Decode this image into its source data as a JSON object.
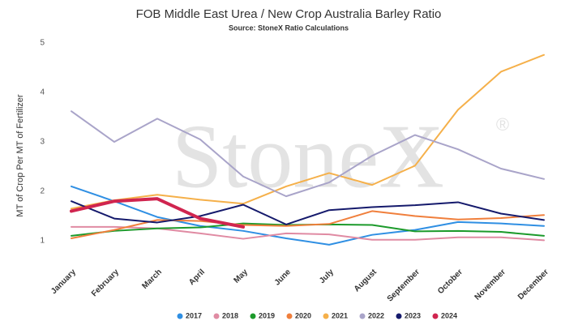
{
  "chart_data": {
    "type": "line",
    "title": "FOB Middle East Urea / New Crop Australia Barley Ratio",
    "subtitle": "Source: StoneX Ratio Calculations",
    "y_label": "MT of Crop Per MT of Fertilizer",
    "watermark": "StoneX",
    "watermark_symbol": "®",
    "categories": [
      "January",
      "February",
      "March",
      "April",
      "May",
      "June",
      "July",
      "August",
      "September",
      "October",
      "November",
      "December"
    ],
    "ylim": [
      0.6,
      5.1
    ],
    "yticks": [
      1,
      2,
      3,
      4,
      5
    ],
    "grid": false,
    "legend": "bottom",
    "series": [
      {
        "name": "2017",
        "color": "#2f8fe3",
        "values": [
          2.1,
          1.8,
          1.48,
          1.3,
          1.2,
          1.05,
          0.92,
          1.12,
          1.22,
          1.38,
          1.35,
          1.3
        ]
      },
      {
        "name": "2018",
        "color": "#e08ba3",
        "values": [
          1.28,
          1.28,
          1.25,
          1.15,
          1.04,
          1.15,
          1.13,
          1.02,
          1.02,
          1.07,
          1.07,
          1.01
        ]
      },
      {
        "name": "2019",
        "color": "#1c9a2b",
        "values": [
          1.1,
          1.2,
          1.25,
          1.27,
          1.35,
          1.32,
          1.33,
          1.32,
          1.19,
          1.2,
          1.18,
          1.1
        ]
      },
      {
        "name": "2020",
        "color": "#f07f3c",
        "values": [
          1.05,
          1.22,
          1.42,
          1.4,
          1.32,
          1.3,
          1.34,
          1.6,
          1.5,
          1.43,
          1.46,
          1.52
        ]
      },
      {
        "name": "2021",
        "color": "#f5b04a",
        "values": [
          1.65,
          1.82,
          1.93,
          1.83,
          1.75,
          2.1,
          2.37,
          2.13,
          2.52,
          3.65,
          4.42,
          4.76
        ]
      },
      {
        "name": "2022",
        "color": "#a9a4c9",
        "values": [
          3.62,
          3.0,
          3.47,
          3.05,
          2.3,
          1.9,
          2.18,
          2.72,
          3.14,
          2.85,
          2.46,
          2.25
        ]
      },
      {
        "name": "2023",
        "color": "#151a6c",
        "values": [
          1.8,
          1.45,
          1.37,
          1.5,
          1.73,
          1.33,
          1.62,
          1.68,
          1.72,
          1.78,
          1.55,
          1.42
        ]
      },
      {
        "name": "2024",
        "color": "#d0254f",
        "width": 4,
        "values": [
          1.6,
          1.8,
          1.85,
          1.45,
          1.28,
          null,
          null,
          null,
          null,
          null,
          null,
          null
        ]
      }
    ]
  }
}
